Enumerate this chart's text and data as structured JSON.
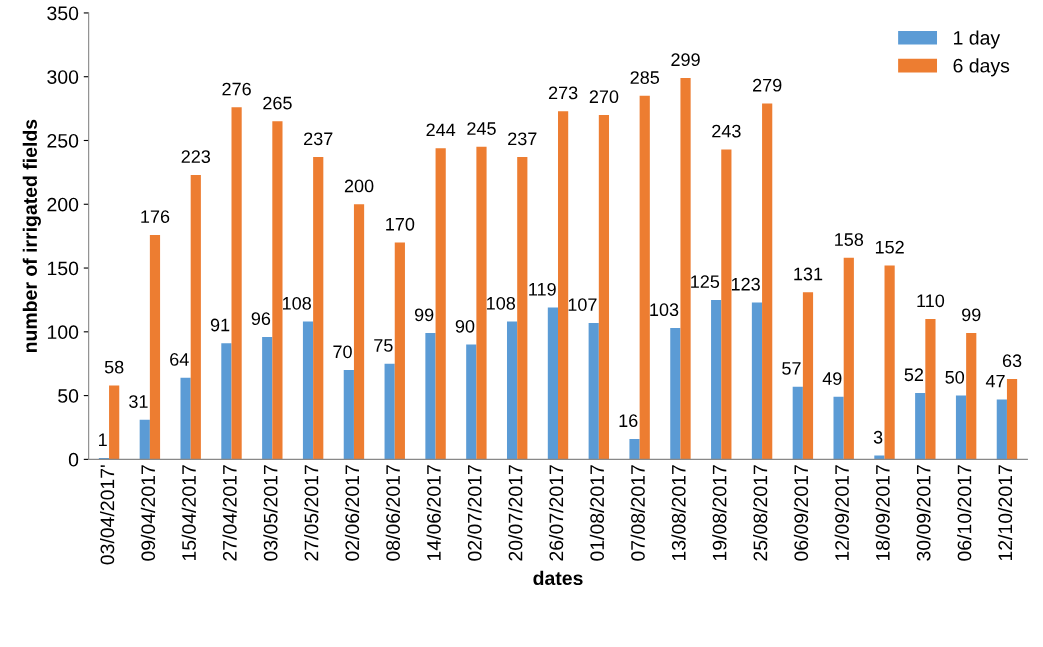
{
  "chart_data": {
    "type": "bar",
    "xlabel": "dates",
    "ylabel": "number of irrigated fields",
    "categories": [
      "03/04/2017'",
      "09/04/2017",
      "15/04/2017",
      "27/04/2017",
      "03/05/2017",
      "27/05/2017",
      "02/06/2017",
      "08/06/2017",
      "14/06/2017",
      "02/07/2017",
      "20/07/2017",
      "26/07/2017",
      "01/08/2017",
      "07/08/2017",
      "13/08/2017",
      "19/08/2017",
      "25/08/2017",
      "06/09/2017",
      "12/09/2017",
      "18/09/2017",
      "30/09/2017",
      "06/10/2017",
      "12/10/2017"
    ],
    "series": [
      {
        "name": "1 day",
        "color": "#5b9bd5",
        "values": [
          1,
          31,
          64,
          91,
          96,
          108,
          70,
          75,
          99,
          90,
          108,
          119,
          107,
          16,
          103,
          125,
          123,
          57,
          49,
          3,
          52,
          50,
          47
        ]
      },
      {
        "name": "6 days",
        "color": "#ed7d31",
        "values": [
          58,
          176,
          223,
          276,
          265,
          237,
          200,
          170,
          244,
          245,
          237,
          273,
          270,
          285,
          299,
          243,
          279,
          131,
          158,
          152,
          110,
          99,
          63
        ]
      }
    ],
    "ylim": [
      0,
      350
    ],
    "yticks": [
      0,
      50,
      100,
      150,
      200,
      250,
      300,
      350
    ],
    "data_labels": true,
    "grid": false,
    "legend": "top right"
  }
}
